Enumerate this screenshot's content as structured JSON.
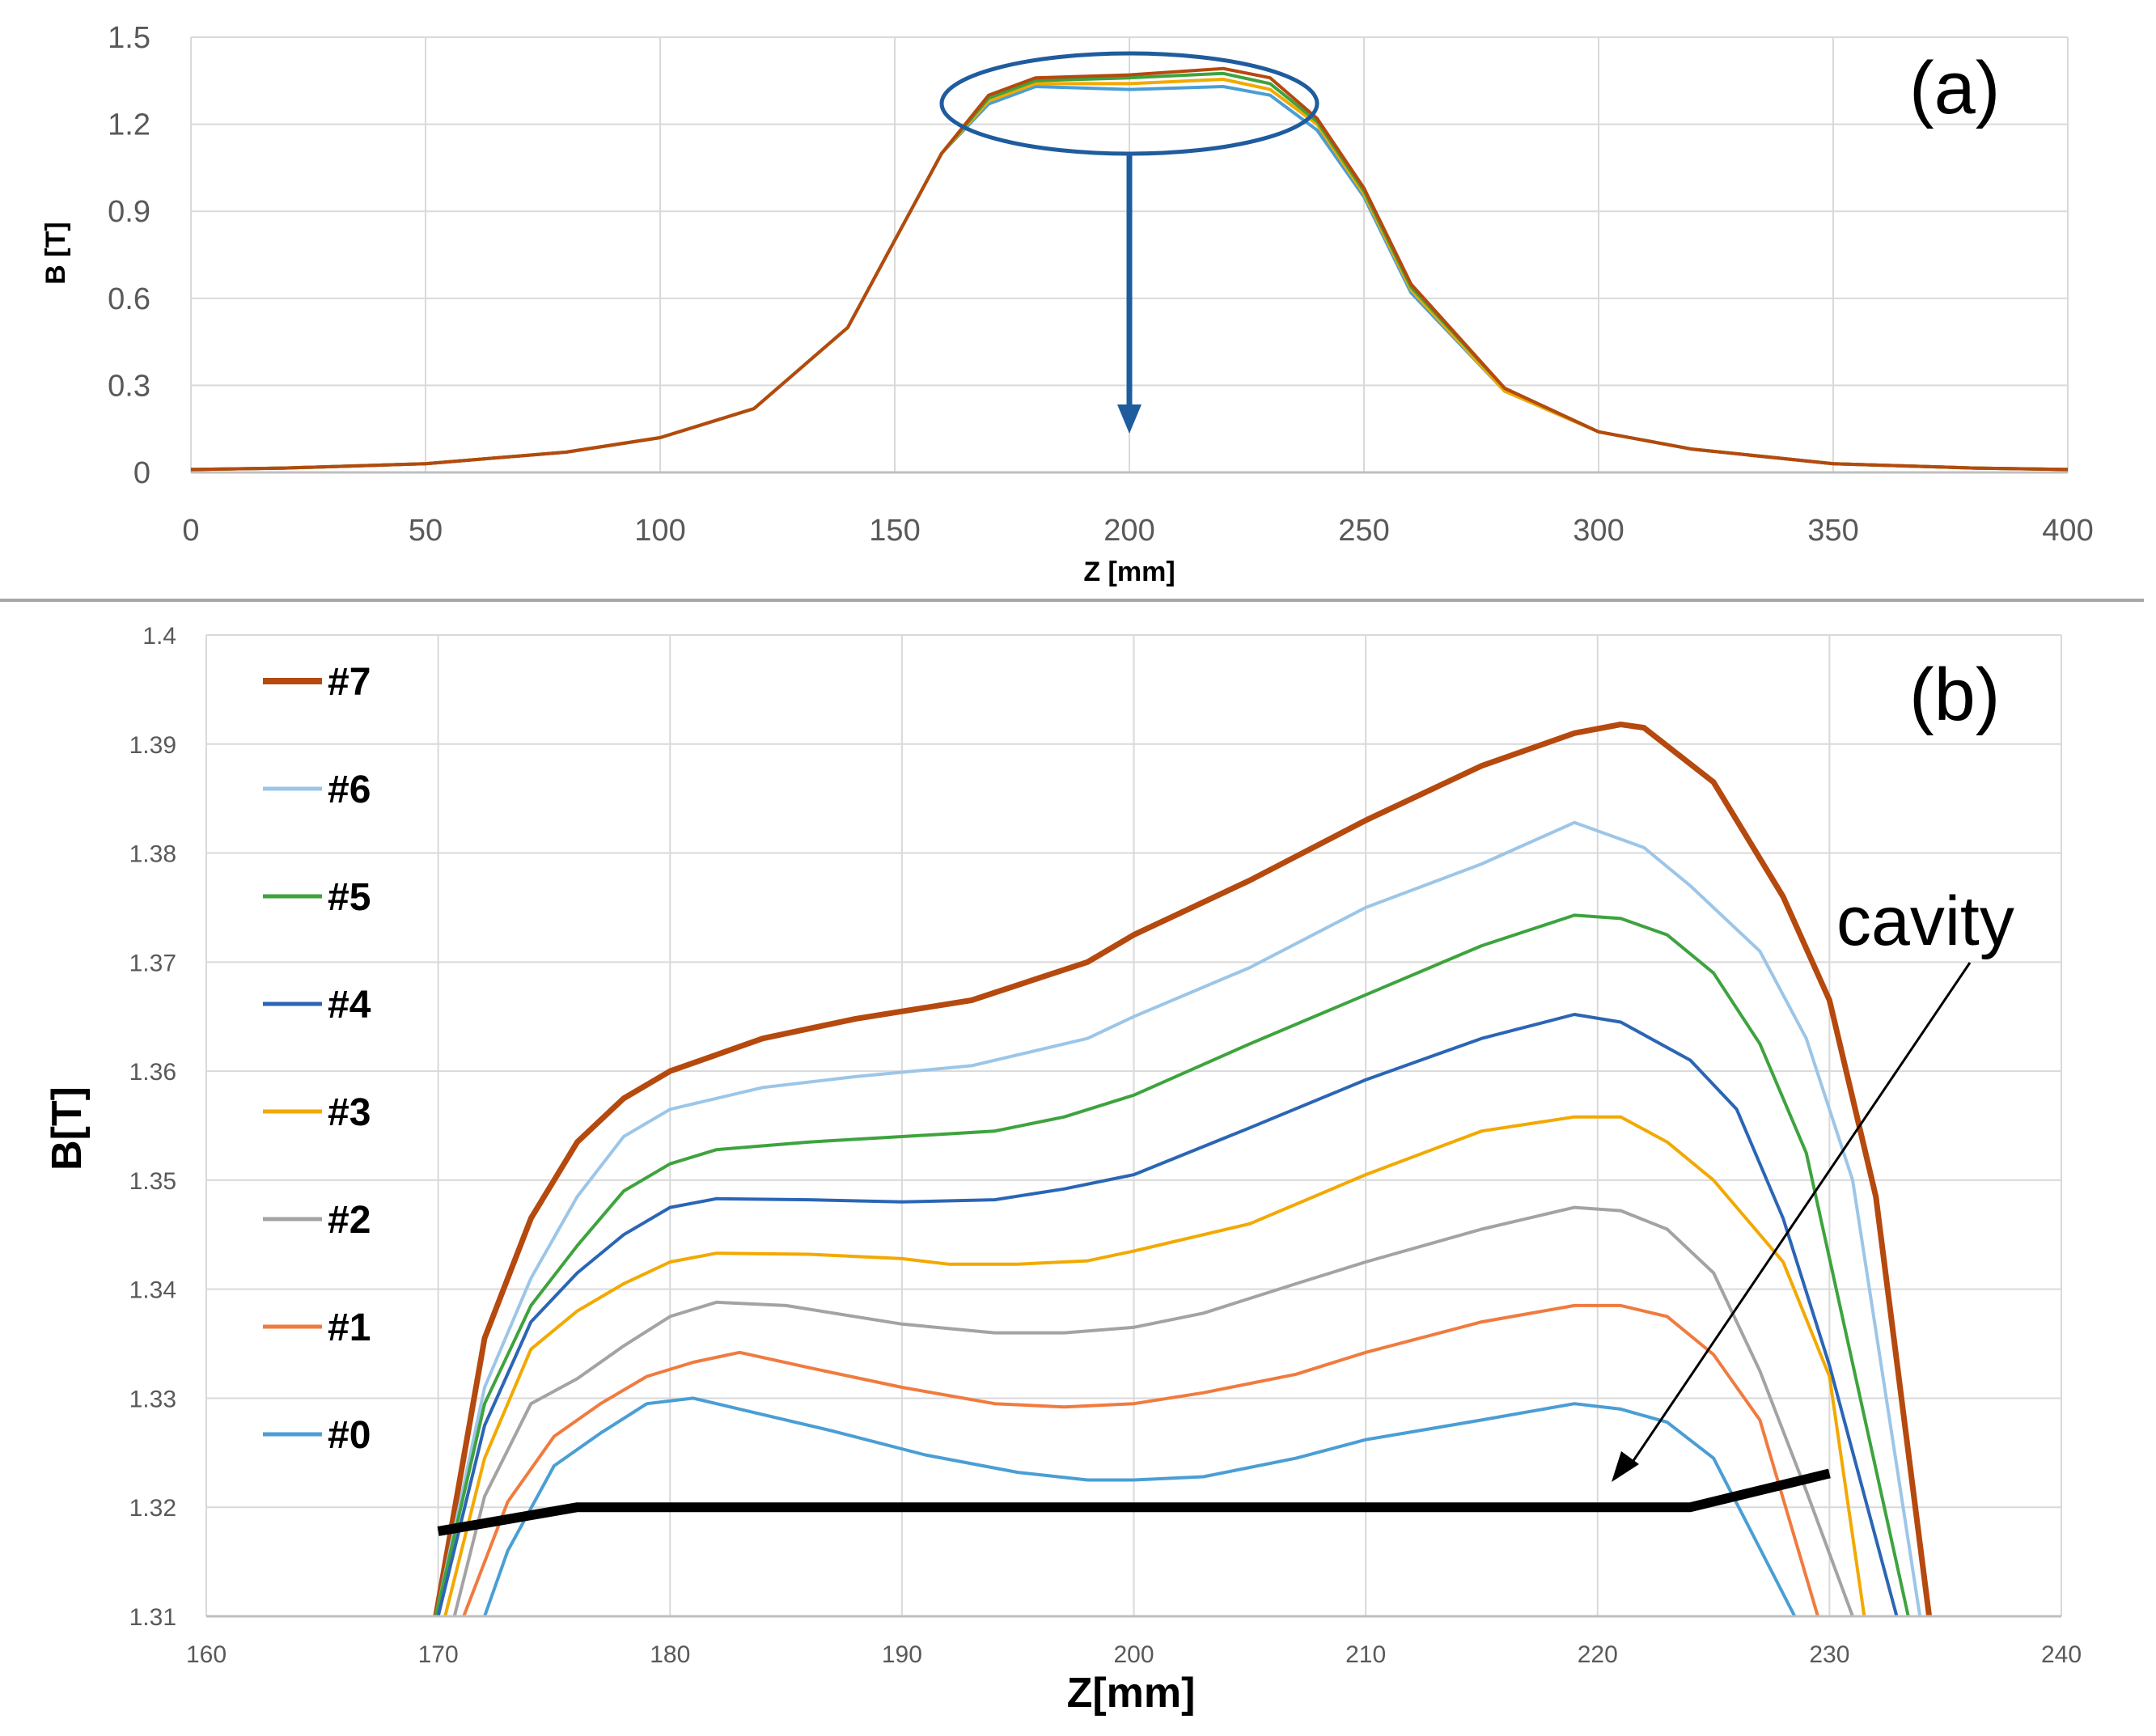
{
  "chart_data": [
    {
      "id": "a",
      "type": "line",
      "panel_label": "(a)",
      "title": "",
      "xlabel": "Z [mm]",
      "ylabel": "B [T]",
      "xlim": [
        0,
        400
      ],
      "ylim": [
        0,
        1.5
      ],
      "xticks": [
        "0",
        "50",
        "100",
        "150",
        "200",
        "250",
        "300",
        "350",
        "400"
      ],
      "yticks": [
        "0",
        "0.3",
        "0.6",
        "0.9",
        "1.2",
        "1.5"
      ],
      "grid": true,
      "annotation": "ellipse around plateau (175–240 mm, ~1.33–1.39 T) with arrow pointing down to panel (b)",
      "series": [
        {
          "name": "#0",
          "color": "#4a9ed4",
          "x": [
            0,
            20,
            50,
            80,
            100,
            120,
            140,
            150,
            160,
            170,
            180,
            200,
            220,
            230,
            240,
            250,
            260,
            280,
            300,
            320,
            350,
            380,
            400
          ],
          "y": [
            0.01,
            0.015,
            0.03,
            0.07,
            0.12,
            0.22,
            0.5,
            0.8,
            1.1,
            1.27,
            1.33,
            1.32,
            1.33,
            1.3,
            1.18,
            0.95,
            0.62,
            0.28,
            0.14,
            0.08,
            0.03,
            0.015,
            0.01
          ]
        },
        {
          "name": "#3",
          "color": "#f2a900",
          "x": [
            0,
            20,
            50,
            80,
            100,
            120,
            140,
            150,
            160,
            170,
            180,
            200,
            220,
            230,
            240,
            250,
            260,
            280,
            300,
            320,
            350,
            380,
            400
          ],
          "y": [
            0.01,
            0.015,
            0.03,
            0.07,
            0.12,
            0.22,
            0.5,
            0.8,
            1.1,
            1.28,
            1.34,
            1.34,
            1.355,
            1.32,
            1.2,
            0.96,
            0.63,
            0.28,
            0.14,
            0.08,
            0.03,
            0.015,
            0.01
          ]
        },
        {
          "name": "#5",
          "color": "#3ea33e",
          "x": [
            0,
            20,
            50,
            80,
            100,
            120,
            140,
            150,
            160,
            170,
            180,
            200,
            220,
            230,
            240,
            250,
            260,
            280,
            300,
            320,
            350,
            380,
            400
          ],
          "y": [
            0.01,
            0.015,
            0.03,
            0.07,
            0.12,
            0.22,
            0.5,
            0.8,
            1.1,
            1.29,
            1.35,
            1.36,
            1.375,
            1.34,
            1.21,
            0.97,
            0.64,
            0.29,
            0.14,
            0.08,
            0.03,
            0.015,
            0.01
          ]
        },
        {
          "name": "#7",
          "color": "#b5490e",
          "x": [
            0,
            20,
            50,
            80,
            100,
            120,
            140,
            150,
            160,
            170,
            180,
            200,
            220,
            230,
            240,
            250,
            260,
            280,
            300,
            320,
            350,
            380,
            400
          ],
          "y": [
            0.01,
            0.015,
            0.03,
            0.07,
            0.12,
            0.22,
            0.5,
            0.8,
            1.1,
            1.3,
            1.36,
            1.37,
            1.392,
            1.36,
            1.22,
            0.98,
            0.65,
            0.29,
            0.14,
            0.08,
            0.03,
            0.015,
            0.01
          ]
        }
      ]
    },
    {
      "id": "b",
      "type": "line",
      "panel_label": "(b)",
      "title": "",
      "xlabel": "Z[mm]",
      "ylabel": "B[T]",
      "xlim": [
        160,
        240
      ],
      "ylim": [
        1.31,
        1.4
      ],
      "xticks": [
        "160",
        "170",
        "180",
        "190",
        "200",
        "210",
        "220",
        "230",
        "240"
      ],
      "yticks": [
        "1.31",
        "1.32",
        "1.33",
        "1.34",
        "1.35",
        "1.36",
        "1.37",
        "1.38",
        "1.39",
        "1.4"
      ],
      "grid": true,
      "legend_position": "top-left",
      "series": [
        {
          "name": "#7",
          "color": "#b5490e",
          "width": 7,
          "x": [
            169.9,
            172,
            174,
            176,
            178,
            180,
            182,
            184,
            188,
            193,
            198,
            200,
            205,
            210,
            215,
            219,
            221,
            222,
            225,
            228,
            230,
            232,
            234.3
          ],
          "y": [
            1.31,
            1.3355,
            1.3465,
            1.3535,
            1.3575,
            1.36,
            1.3615,
            1.363,
            1.3648,
            1.3665,
            1.37,
            1.3725,
            1.3775,
            1.383,
            1.388,
            1.391,
            1.3918,
            1.3915,
            1.3865,
            1.376,
            1.3665,
            1.3485,
            1.31
          ]
        },
        {
          "name": "#6",
          "color": "#9cc6e8",
          "width": 4,
          "x": [
            169.9,
            172,
            174,
            176,
            178,
            180,
            182,
            184,
            188,
            193,
            198,
            200,
            205,
            210,
            215,
            219,
            222,
            224,
            227,
            229,
            231,
            233.9
          ],
          "y": [
            1.31,
            1.331,
            1.341,
            1.3485,
            1.354,
            1.3565,
            1.3575,
            1.3585,
            1.3595,
            1.3605,
            1.363,
            1.365,
            1.3695,
            1.375,
            1.379,
            1.3828,
            1.3805,
            1.377,
            1.371,
            1.363,
            1.35,
            1.31
          ]
        },
        {
          "name": "#5",
          "color": "#3ea33e",
          "width": 4,
          "x": [
            169.9,
            172,
            174,
            176,
            178,
            180,
            182,
            186,
            190,
            194,
            197,
            200,
            205,
            210,
            215,
            219,
            221,
            223,
            225,
            227,
            229,
            233.4
          ],
          "y": [
            1.31,
            1.3295,
            1.3385,
            1.344,
            1.349,
            1.3515,
            1.3528,
            1.3535,
            1.354,
            1.3545,
            1.3558,
            1.3578,
            1.3625,
            1.367,
            1.3715,
            1.3743,
            1.374,
            1.3725,
            1.369,
            1.3625,
            1.3525,
            1.31
          ]
        },
        {
          "name": "#4",
          "color": "#2b65b5",
          "width": 4,
          "x": [
            170,
            172,
            174,
            176,
            178,
            180,
            182,
            186,
            190,
            194,
            197,
            200,
            205,
            210,
            215,
            219,
            221,
            224,
            226,
            228,
            230,
            232.9
          ],
          "y": [
            1.31,
            1.3275,
            1.337,
            1.3415,
            1.345,
            1.3475,
            1.3483,
            1.3482,
            1.348,
            1.3482,
            1.3492,
            1.3505,
            1.3548,
            1.3592,
            1.363,
            1.3652,
            1.3645,
            1.361,
            1.3565,
            1.3465,
            1.333,
            1.31
          ]
        },
        {
          "name": "#3",
          "color": "#f2a900",
          "width": 4,
          "x": [
            170.3,
            172,
            174,
            176,
            178,
            180,
            182,
            186,
            190,
            192,
            195,
            198,
            200,
            205,
            210,
            215,
            219,
            221,
            223,
            225,
            228,
            230,
            231.5
          ],
          "y": [
            1.31,
            1.3245,
            1.3345,
            1.338,
            1.3405,
            1.3425,
            1.3433,
            1.3432,
            1.3428,
            1.3423,
            1.3423,
            1.3426,
            1.3435,
            1.346,
            1.3505,
            1.3545,
            1.3558,
            1.3558,
            1.3535,
            1.35,
            1.3425,
            1.332,
            1.31
          ]
        },
        {
          "name": "#2",
          "color": "#a3a3a3",
          "width": 4,
          "x": [
            170.7,
            172,
            174,
            176,
            178,
            180,
            182,
            185,
            190,
            194,
            197,
            200,
            203,
            207,
            210,
            215,
            219,
            221,
            223,
            225,
            227,
            229,
            231
          ],
          "y": [
            1.31,
            1.321,
            1.3295,
            1.3318,
            1.3348,
            1.3375,
            1.3388,
            1.3385,
            1.3368,
            1.336,
            1.336,
            1.3365,
            1.3378,
            1.3405,
            1.3425,
            1.3455,
            1.3475,
            1.3472,
            1.3455,
            1.3415,
            1.3325,
            1.3215,
            1.31
          ]
        },
        {
          "name": "#1",
          "color": "#f07b3f",
          "width": 4,
          "x": [
            171.1,
            173,
            175,
            177,
            179,
            181,
            183,
            186,
            190,
            194,
            197,
            200,
            203,
            207,
            210,
            215,
            219,
            221,
            223,
            225,
            227,
            229.5
          ],
          "y": [
            1.31,
            1.3205,
            1.3265,
            1.3295,
            1.332,
            1.3333,
            1.3342,
            1.3328,
            1.331,
            1.3295,
            1.3292,
            1.3295,
            1.3305,
            1.3322,
            1.3342,
            1.337,
            1.3385,
            1.3385,
            1.3375,
            1.334,
            1.328,
            1.31
          ]
        },
        {
          "name": "#0",
          "color": "#4a9ed4",
          "width": 4,
          "x": [
            172,
            173,
            175,
            177,
            179,
            181,
            183,
            187,
            191,
            195,
            198,
            200,
            203,
            207,
            210,
            215,
            219,
            221,
            223,
            225,
            228.5
          ],
          "y": [
            1.31,
            1.316,
            1.3238,
            1.3268,
            1.3295,
            1.33,
            1.329,
            1.327,
            1.3248,
            1.3232,
            1.3225,
            1.3225,
            1.3228,
            1.3245,
            1.3262,
            1.328,
            1.3295,
            1.329,
            1.3278,
            1.3245,
            1.31
          ]
        }
      ],
      "cavity": {
        "label": "cavity",
        "color": "#000000",
        "x": [
          170,
          176,
          224,
          230
        ],
        "y": [
          1.3178,
          1.32,
          1.32,
          1.3231
        ]
      }
    }
  ]
}
